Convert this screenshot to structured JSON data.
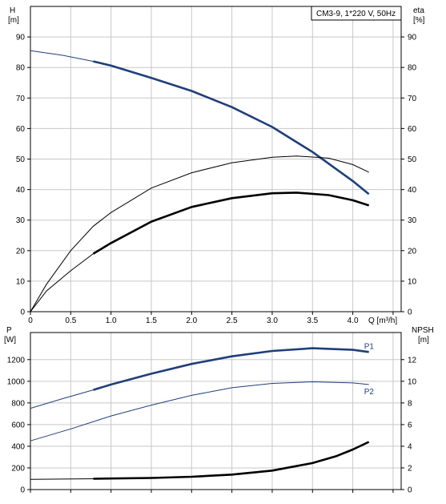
{
  "chart_data": [
    {
      "type": "line",
      "panel": "top",
      "legend_box": "CM3-9, 1*220 V, 50Hz",
      "left_axis": {
        "label": "H",
        "unit": "[m]",
        "ylim": [
          0,
          100
        ],
        "ticks": [
          0,
          10,
          20,
          30,
          40,
          50,
          60,
          70,
          80,
          90
        ]
      },
      "right_axis": {
        "label": "eta",
        "unit": "[%]",
        "ylim": [
          0,
          100
        ],
        "ticks": [
          0,
          10,
          20,
          30,
          40,
          50,
          60,
          70,
          80,
          90
        ]
      },
      "x_axis": {
        "label": "Q [m³/h]",
        "xlim": [
          0,
          4.6
        ],
        "ticks": [
          "0",
          "0.5",
          "1.0",
          "1.5",
          "2.0",
          "2.5",
          "3.0",
          "3.5",
          "4.0"
        ],
        "tick_values": [
          0,
          0.5,
          1.0,
          1.5,
          2.0,
          2.5,
          3.0,
          3.5,
          4.0
        ]
      },
      "grid": true,
      "series": [
        {
          "axis": "left",
          "color": "#1f3f7a",
          "style": "thin-then-bold",
          "bold_from": 0.78,
          "x": [
            0,
            0.4,
            0.78,
            1.0,
            1.5,
            2.0,
            2.5,
            3.0,
            3.5,
            4.0,
            4.2
          ],
          "y": [
            85.5,
            84.0,
            82.0,
            80.6,
            76.6,
            72.3,
            67.0,
            60.5,
            52.3,
            42.8,
            38.5
          ]
        },
        {
          "axis": "right",
          "color": "#000000",
          "style": "thin",
          "x": [
            0,
            0.2,
            0.5,
            0.78,
            1.0,
            1.5,
            2.0,
            2.5,
            3.0,
            3.3,
            3.7,
            4.0,
            4.2
          ],
          "y": [
            0,
            9,
            20,
            28,
            32.5,
            40.5,
            45.5,
            48.8,
            50.6,
            51,
            50.3,
            48.2,
            45.7
          ]
        },
        {
          "axis": "right",
          "color": "#000000",
          "style": "thin-then-bold",
          "bold_from": 0.78,
          "x": [
            0,
            0.2,
            0.5,
            0.78,
            1.0,
            1.5,
            2.0,
            2.5,
            3.0,
            3.3,
            3.7,
            4.0,
            4.2
          ],
          "y": [
            0,
            6.8,
            13.4,
            19,
            22.5,
            29.5,
            34.3,
            37.2,
            38.8,
            39,
            38.2,
            36.5,
            34.8
          ]
        }
      ]
    },
    {
      "type": "line",
      "panel": "bottom",
      "left_axis": {
        "label": "P",
        "unit": "[W]",
        "ylim": [
          0,
          1450
        ],
        "ticks": [
          0,
          200,
          400,
          600,
          800,
          1000,
          1200
        ]
      },
      "right_axis": {
        "label": "NPSH",
        "unit": "[m]",
        "ylim": [
          0,
          14.5
        ],
        "ticks": [
          0,
          2,
          4,
          6,
          8,
          10,
          12
        ]
      },
      "x_axis": {
        "xlim": [
          0,
          4.6
        ]
      },
      "grid": true,
      "series": [
        {
          "name": "P1",
          "axis": "left",
          "color": "#1f3f7a",
          "style": "thin-then-bold",
          "bold_from": 0.78,
          "x": [
            0,
            0.4,
            0.78,
            1.0,
            1.5,
            2.0,
            2.5,
            3.0,
            3.5,
            4.0,
            4.2
          ],
          "y": [
            750,
            840,
            920,
            970,
            1070,
            1160,
            1230,
            1280,
            1305,
            1290,
            1270
          ]
        },
        {
          "name": "P2",
          "axis": "left",
          "color": "#1f3f7a",
          "style": "thin",
          "x": [
            0,
            0.5,
            1.0,
            1.5,
            2.0,
            2.5,
            3.0,
            3.5,
            4.0,
            4.2
          ],
          "y": [
            450,
            560,
            680,
            780,
            870,
            940,
            980,
            995,
            985,
            970
          ]
        },
        {
          "axis": "right",
          "color": "#000000",
          "style": "thin-then-bold",
          "bold_from": 0.78,
          "x": [
            0,
            0.78,
            1.5,
            2.0,
            2.5,
            3.0,
            3.5,
            3.8,
            4.0,
            4.2
          ],
          "y": [
            0.95,
            1.0,
            1.07,
            1.18,
            1.38,
            1.75,
            2.45,
            3.1,
            3.7,
            4.4
          ]
        }
      ]
    }
  ]
}
